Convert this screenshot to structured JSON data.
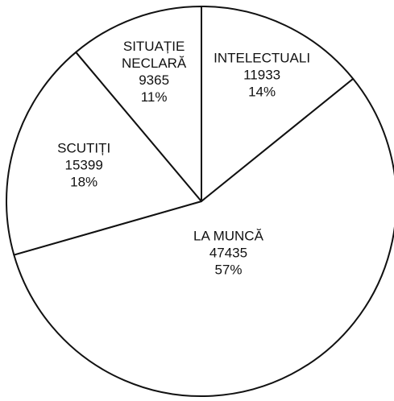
{
  "chart_data": {
    "type": "pie",
    "categories": [
      "INTELECTUALI",
      "LA MUNCĂ",
      "SCUTIȚI",
      "SITUAȚIE NECLARĂ"
    ],
    "values": [
      11933,
      47435,
      15399,
      9365
    ],
    "percentages": [
      14,
      57,
      18,
      11
    ],
    "percentage_labels": [
      "14%",
      "57%",
      "18%",
      "11%"
    ],
    "colors": [
      "#ffffff",
      "#ffffff",
      "#ffffff",
      "#ffffff"
    ]
  }
}
